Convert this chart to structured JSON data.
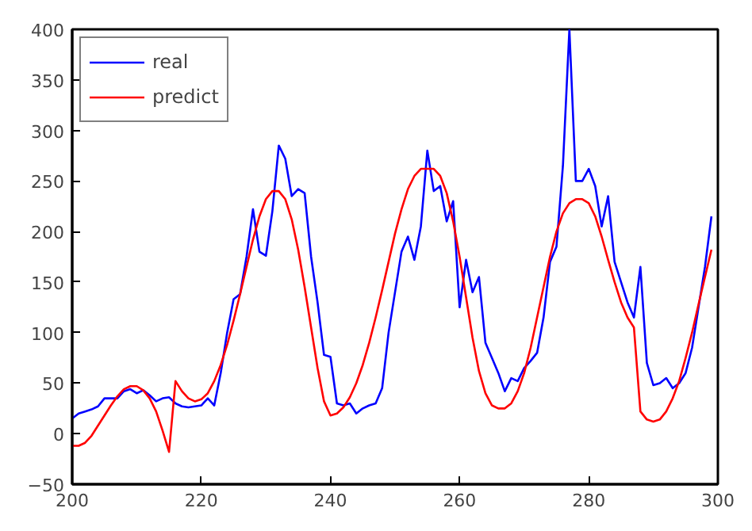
{
  "chart_data": {
    "type": "line",
    "x": [
      200,
      201,
      202,
      203,
      204,
      205,
      206,
      207,
      208,
      209,
      210,
      211,
      212,
      213,
      214,
      215,
      216,
      217,
      218,
      219,
      220,
      221,
      222,
      223,
      224,
      225,
      226,
      227,
      228,
      229,
      230,
      231,
      232,
      233,
      234,
      235,
      236,
      237,
      238,
      239,
      240,
      241,
      242,
      243,
      244,
      245,
      246,
      247,
      248,
      249,
      250,
      251,
      252,
      253,
      254,
      255,
      256,
      257,
      258,
      259,
      260,
      261,
      262,
      263,
      264,
      265,
      266,
      267,
      268,
      269,
      270,
      271,
      272,
      273,
      274,
      275,
      276,
      277,
      278,
      279,
      280,
      281,
      282,
      283,
      284,
      285,
      286,
      287,
      288,
      289,
      290,
      291,
      292,
      293,
      294,
      295,
      296,
      297,
      298,
      299
    ],
    "series": [
      {
        "name": "real",
        "color": "#0000ff",
        "values": [
          15,
          20,
          22,
          24,
          27,
          35,
          35,
          35,
          42,
          44,
          40,
          43,
          38,
          32,
          35,
          36,
          30,
          27,
          26,
          27,
          28,
          35,
          28,
          60,
          100,
          133,
          138,
          175,
          222,
          180,
          176,
          220,
          285,
          272,
          235,
          242,
          238,
          175,
          130,
          78,
          76,
          30,
          28,
          30,
          20,
          25,
          28,
          30,
          45,
          100,
          140,
          180,
          195,
          172,
          205,
          280,
          240,
          245,
          210,
          230,
          125,
          172,
          140,
          155,
          90,
          75,
          60,
          42,
          55,
          52,
          65,
          72,
          80,
          115,
          170,
          185,
          265,
          400,
          250,
          250,
          262,
          245,
          205,
          235,
          170,
          150,
          130,
          115,
          165,
          70,
          48,
          50,
          55,
          45,
          50,
          60,
          85,
          125,
          165,
          215
        ]
      },
      {
        "name": "predict",
        "color": "#ff0000",
        "values": [
          -12,
          -12,
          -9,
          -2,
          8,
          18,
          28,
          37,
          44,
          47,
          47,
          43,
          35,
          22,
          3,
          -18,
          52,
          42,
          35,
          32,
          34,
          40,
          52,
          68,
          88,
          112,
          138,
          165,
          192,
          215,
          232,
          240,
          240,
          232,
          212,
          182,
          145,
          105,
          65,
          32,
          18,
          20,
          26,
          36,
          50,
          68,
          90,
          115,
          142,
          170,
          198,
          222,
          242,
          255,
          262,
          262,
          262,
          255,
          238,
          210,
          175,
          135,
          95,
          62,
          40,
          28,
          25,
          25,
          30,
          42,
          60,
          85,
          115,
          145,
          175,
          200,
          218,
          228,
          232,
          232,
          228,
          215,
          195,
          172,
          150,
          130,
          115,
          105,
          22,
          14,
          12,
          14,
          22,
          35,
          52,
          75,
          100,
          128,
          155,
          182
        ]
      }
    ],
    "xlim": [
      200,
      300
    ],
    "ylim": [
      -50,
      400
    ],
    "xticks": [
      200,
      220,
      240,
      260,
      280,
      300
    ],
    "yticks": [
      {
        "value": -50,
        "label": "−50"
      },
      0,
      50,
      100,
      150,
      200,
      250,
      300,
      350,
      400
    ],
    "legend": "top left",
    "grid": false
  }
}
